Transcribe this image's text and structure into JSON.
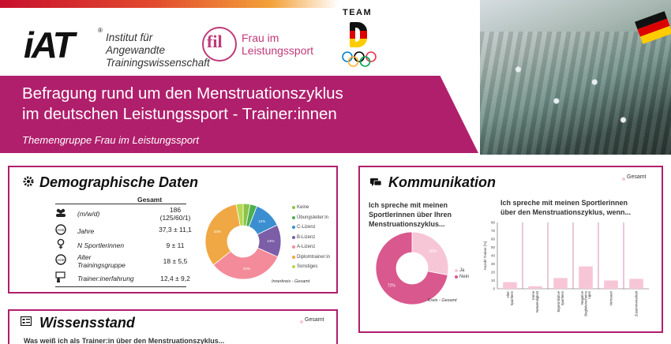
{
  "header": {
    "iat_mark": "iAT",
    "iat_reg": "®",
    "iat_line1": "Institut für Angewandte",
    "iat_line2": "Trainingswissenschaft",
    "fil_letters": "fil",
    "fil_line1": "Frau im",
    "fil_line2": "Leistungssport",
    "team_word": "TEAM"
  },
  "banner": {
    "title_line1": "Befragung rund um den Menstruationszyklus",
    "title_line2": "im deutschen Leistungssport - Trainer:innen",
    "subtitle": "Themengruppe Frau im Leistungssport"
  },
  "demographics": {
    "title": "Demographische Daten",
    "column_header": "Gesamt",
    "rows": [
      {
        "label": "(m/w/d)",
        "value_line1": "186",
        "value_line2": "(125/60/1)",
        "icon": "people-icon"
      },
      {
        "label": "Jahre",
        "value_line1": "37,3 ± 11,1",
        "icon": "age-icon"
      },
      {
        "label": "N Sportlerinnen",
        "value_line1": "9 ± 11",
        "icon": "female-icon"
      },
      {
        "label_line1": "Alter",
        "label_line2": "Trainingsgruppe",
        "value_line1": "18 ± 5,5",
        "icon": "age-group-icon"
      },
      {
        "label": "Trainer:inerfahrung",
        "value_line1": "12,4 ± 9,2",
        "icon": "trainer-icon"
      }
    ],
    "pie_caption": "Innerkreis - Gesamt"
  },
  "chart_data": [
    {
      "type": "pie",
      "title": "",
      "categories": [
        "Keine",
        "Übungsleiter:in",
        "C-Lizenz",
        "B-Lizenz",
        "A-Lizenz",
        "Diplomtrainer:in",
        "Sonstiges"
      ],
      "values": [
        3,
        3,
        12,
        14,
        33,
        33,
        3
      ],
      "value_labels": [
        "",
        "",
        "12%",
        "14%",
        "33%",
        "33%",
        ""
      ],
      "colors": [
        "#8bc34a",
        "#4caf50",
        "#3b8fd0",
        "#7b5ea7",
        "#f48b9a",
        "#f0a844",
        "#b5d94d"
      ]
    },
    {
      "type": "pie",
      "title": "Ich spreche mit meinen Sportlerinnen über Ihren Menstruationszyklus...",
      "categories": [
        "Ja",
        "Nein"
      ],
      "values": [
        28,
        72
      ],
      "value_labels": [
        "28%",
        "72%"
      ],
      "colors": [
        "#f7c6d6",
        "#d9588e"
      ],
      "caption": "Kreis - Gesamt"
    },
    {
      "type": "bar",
      "title": "Ich spreche mit meinen Sportlerinnen über den Menstruationszyklus, wenn...",
      "ylabel": "Anzahl Trainer [%]",
      "ylim": [
        0,
        80
      ],
      "yticks": [
        "0",
        "10",
        "20",
        "30",
        "40",
        "50",
        "60",
        "70",
        "80"
      ],
      "categories": [
        "Alter Sportlerin",
        "Keine Notwendigkeit",
        "Eigeninitiative Sportlerin",
        "Negative Begleiterscheinungen",
        "Vertrauen",
        "Zusammenarbeit"
      ],
      "category_labels": [
        "Alter Sportlerin",
        "Keine Notwendigkeit",
        "Eigeninitiative Sportlerin",
        "Negative Begleiterscheinu ngen",
        "Vertrauen",
        "Zusammenarbeit"
      ],
      "series": [
        {
          "name": "Gesamt",
          "values": [
            8,
            3,
            13,
            27,
            10,
            12
          ]
        }
      ],
      "color": "#f7c6d6"
    }
  ],
  "kommunikation": {
    "title": "Kommunikation",
    "legend_gesamt": "Gesamt",
    "q1_line1": "Ich spreche mit meinen",
    "q1_line2": "Sportlerinnen über Ihren",
    "q1_line3": "Menstruationszyklus...",
    "q2_line1": "Ich spreche mit meinen Sportlerinnen",
    "q2_line2": "über den Menstruationszyklus, wenn..."
  },
  "wissen": {
    "title": "Wissensstand",
    "legend_gesamt": "Gesamt",
    "question": "Was weiß ich als Trainer:in über den Menstruationszyklus..."
  }
}
